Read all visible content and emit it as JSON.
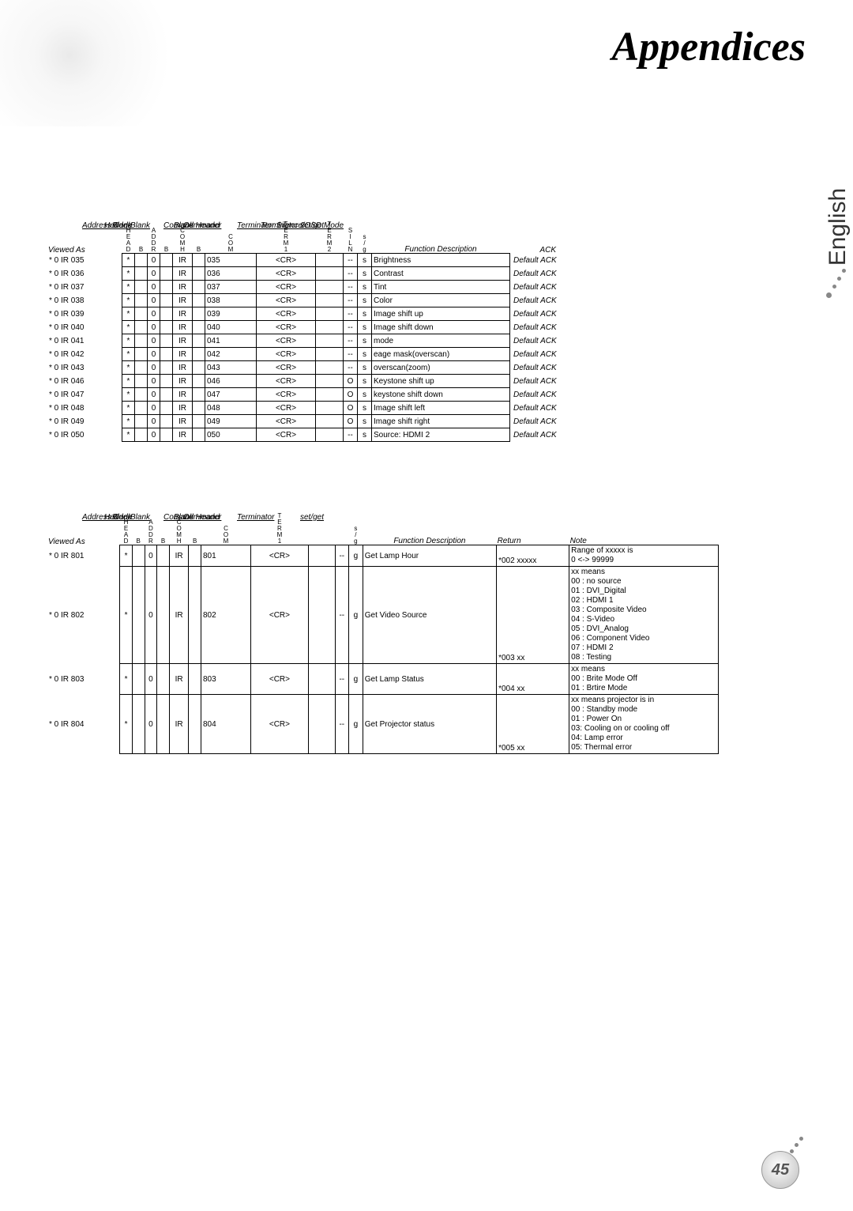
{
  "page": {
    "title": "Appendices",
    "side_label": "English",
    "page_number": "45"
  },
  "table1": {
    "header_labels": {
      "command_header": "Comand Header",
      "blank1": "Blank",
      "blank2": "Blank",
      "address_code": "Address Code",
      "command": "Command",
      "blank3": "Blank",
      "terminator1": "Terminator 1",
      "header_lbl": "Header",
      "terminator2": "Terminator 2",
      "silence": "Silence/OSD Mode",
      "setget": "set/get"
    },
    "col_heads": {
      "viewed_as": "Viewed As",
      "head": "HEAD",
      "b1": "B",
      "addr": "ADDR",
      "b2": "B",
      "comh": "COMH",
      "b3": "B",
      "com": "COM",
      "term1": "TERM1",
      "term2": "TERM2",
      "siln": "SILN",
      "sg": "s/g",
      "func": "Function Description",
      "ack": "ACK"
    },
    "rows": [
      {
        "va": "* 0 IR 035",
        "hd": "*",
        "b1": "",
        "ad": "0",
        "b2": "",
        "ch": "IR",
        "b3": "",
        "cm": "035",
        "t1": "<CR>",
        "t2": "",
        "sl": "--",
        "sg": "s",
        "fn": "Brightness",
        "ak": "Default ACK"
      },
      {
        "va": "* 0 IR 036",
        "hd": "*",
        "b1": "",
        "ad": "0",
        "b2": "",
        "ch": "IR",
        "b3": "",
        "cm": "036",
        "t1": "<CR>",
        "t2": "",
        "sl": "--",
        "sg": "s",
        "fn": "Contrast",
        "ak": "Default ACK"
      },
      {
        "va": "* 0 IR 037",
        "hd": "*",
        "b1": "",
        "ad": "0",
        "b2": "",
        "ch": "IR",
        "b3": "",
        "cm": "037",
        "t1": "<CR>",
        "t2": "",
        "sl": "--",
        "sg": "s",
        "fn": "Tint",
        "ak": "Default ACK"
      },
      {
        "va": "* 0 IR 038",
        "hd": "*",
        "b1": "",
        "ad": "0",
        "b2": "",
        "ch": "IR",
        "b3": "",
        "cm": "038",
        "t1": "<CR>",
        "t2": "",
        "sl": "--",
        "sg": "s",
        "fn": "Color",
        "ak": "Default ACK"
      },
      {
        "va": "* 0 IR 039",
        "hd": "*",
        "b1": "",
        "ad": "0",
        "b2": "",
        "ch": "IR",
        "b3": "",
        "cm": "039",
        "t1": "<CR>",
        "t2": "",
        "sl": "--",
        "sg": "s",
        "fn": "Image shift up",
        "ak": "Default ACK"
      },
      {
        "va": "* 0 IR 040",
        "hd": "*",
        "b1": "",
        "ad": "0",
        "b2": "",
        "ch": "IR",
        "b3": "",
        "cm": "040",
        "t1": "<CR>",
        "t2": "",
        "sl": "--",
        "sg": "s",
        "fn": "Image shift down",
        "ak": "Default ACK"
      },
      {
        "va": "* 0 IR 041",
        "hd": "*",
        "b1": "",
        "ad": "0",
        "b2": "",
        "ch": "IR",
        "b3": "",
        "cm": "041",
        "t1": "<CR>",
        "t2": "",
        "sl": "--",
        "sg": "s",
        "fn": "mode",
        "ak": "Default ACK"
      },
      {
        "va": "* 0 IR 042",
        "hd": "*",
        "b1": "",
        "ad": "0",
        "b2": "",
        "ch": "IR",
        "b3": "",
        "cm": "042",
        "t1": "<CR>",
        "t2": "",
        "sl": "--",
        "sg": "s",
        "fn": "eage mask(overscan)",
        "ak": "Default ACK"
      },
      {
        "va": "* 0 IR 043",
        "hd": "*",
        "b1": "",
        "ad": "0",
        "b2": "",
        "ch": "IR",
        "b3": "",
        "cm": "043",
        "t1": "<CR>",
        "t2": "",
        "sl": "--",
        "sg": "s",
        "fn": "overscan(zoom)",
        "ak": "Default ACK"
      },
      {
        "va": "* 0 IR 046",
        "hd": "*",
        "b1": "",
        "ad": "0",
        "b2": "",
        "ch": "IR",
        "b3": "",
        "cm": "046",
        "t1": "<CR>",
        "t2": "",
        "sl": "O",
        "sg": "s",
        "fn": "Keystone shift up",
        "ak": "Default ACK"
      },
      {
        "va": "* 0 IR 047",
        "hd": "*",
        "b1": "",
        "ad": "0",
        "b2": "",
        "ch": "IR",
        "b3": "",
        "cm": "047",
        "t1": "<CR>",
        "t2": "",
        "sl": "O",
        "sg": "s",
        "fn": "keystone shift down",
        "ak": "Default ACK"
      },
      {
        "va": "* 0 IR 048",
        "hd": "*",
        "b1": "",
        "ad": "0",
        "b2": "",
        "ch": "IR",
        "b3": "",
        "cm": "048",
        "t1": "<CR>",
        "t2": "",
        "sl": "O",
        "sg": "s",
        "fn": "Image shift left",
        "ak": "Default ACK"
      },
      {
        "va": "* 0 IR 049",
        "hd": "*",
        "b1": "",
        "ad": "0",
        "b2": "",
        "ch": "IR",
        "b3": "",
        "cm": "049",
        "t1": "<CR>",
        "t2": "",
        "sl": "O",
        "sg": "s",
        "fn": "Image shift right",
        "ak": "Default ACK"
      },
      {
        "va": "* 0 IR 050",
        "hd": "*",
        "b1": "",
        "ad": "0",
        "b2": "",
        "ch": "IR",
        "b3": "",
        "cm": "050",
        "t1": "<CR>",
        "t2": "",
        "sl": "--",
        "sg": "s",
        "fn": "Source: HDMI 2",
        "ak": "Default ACK"
      }
    ]
  },
  "table2": {
    "header_labels": {
      "command_header": "Comand Header",
      "blank1": "Blank",
      "blank2": "Blank",
      "address_code": "Address Code",
      "command": "Command",
      "blank3": "Blank",
      "terminator": "Terminator",
      "header_lbl": "Header",
      "setget": "set/get"
    },
    "col_heads": {
      "viewed_as": "Viewed As",
      "head": "HEAD",
      "b1": "B",
      "addr": "ADDR",
      "b2": "B",
      "comh": "COMH",
      "b3": "B",
      "com": "COM",
      "term1": "TERM1",
      "sp1": "",
      "sp2": "",
      "sg": "s/g",
      "func": "Function Description",
      "ret": "Return",
      "note": "Note"
    },
    "rows": [
      {
        "va": "* 0 IR 801",
        "hd": "*",
        "b1": "",
        "ad": "0",
        "b2": "",
        "ch": "IR",
        "b3": "",
        "cm": "801",
        "t1": "<CR>",
        "s1": "",
        "s2": "--",
        "sg": "g",
        "fn": "Get Lamp Hour",
        "rt": "*002 xxxxx",
        "nt": "Range of xxxxx is\n0 <-> 99999"
      },
      {
        "va": "* 0 IR 802",
        "hd": "*",
        "b1": "",
        "ad": "0",
        "b2": "",
        "ch": "IR",
        "b3": "",
        "cm": "802",
        "t1": "<CR>",
        "s1": "",
        "s2": "--",
        "sg": "g",
        "fn": "Get Video Source",
        "rt": "*003 xx",
        "nt": "xx means\n00 : no source\n01 : DVI_Digital\n02 : HDMI 1\n03 : Composite Video\n04 : S-Video\n05 : DVI_Analog\n06 : Component Video\n07 : HDMI 2\n08 : Testing"
      },
      {
        "va": "* 0 IR 803",
        "hd": "*",
        "b1": "",
        "ad": "0",
        "b2": "",
        "ch": "IR",
        "b3": "",
        "cm": "803",
        "t1": "<CR>",
        "s1": "",
        "s2": "--",
        "sg": "g",
        "fn": "Get Lamp Status",
        "rt": "*004 xx",
        "nt": "xx means\n00 : Brite Mode Off\n01 : Brtire Mode"
      },
      {
        "va": "* 0 IR 804",
        "hd": "*",
        "b1": "",
        "ad": "0",
        "b2": "",
        "ch": "IR",
        "b3": "",
        "cm": "804",
        "t1": "<CR>",
        "s1": "",
        "s2": "--",
        "sg": "g",
        "fn": "Get Projector status",
        "rt": "*005 xx",
        "nt": "xx means projector is in\n00 : Standby mode\n01 : Power On\n03: Cooling on or cooling off\n04: Lamp error\n05: Thermal error"
      }
    ]
  },
  "col_widths": {
    "va": 90,
    "hd": 11,
    "b1": 11,
    "ad": 11,
    "b2": 11,
    "ch": 20,
    "b3": 11,
    "cm": 60,
    "t1": 70,
    "t2": 30,
    "sl": 13,
    "sg": 13,
    "fn": 170,
    "ak": 90,
    "rt": 90,
    "nt": 190
  }
}
